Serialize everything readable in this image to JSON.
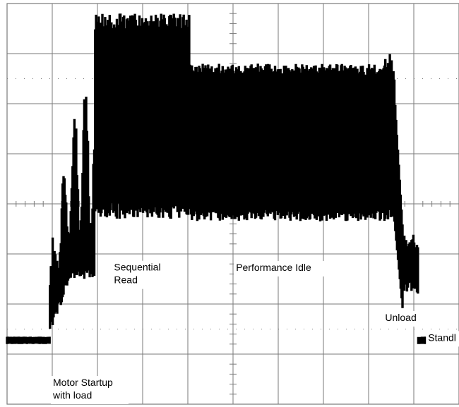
{
  "colors": {
    "background": "#ffffff",
    "grid": "#7a7a7a",
    "trace": "#000000",
    "label_box": "#ffffff"
  },
  "chart_data": {
    "type": "line",
    "title": "",
    "xlabel": "",
    "ylabel": "",
    "grid": true,
    "divisions": {
      "x": 10,
      "y": 8
    },
    "xlim": [
      0,
      10
    ],
    "ylim": [
      0,
      8
    ],
    "series": [
      {
        "segments": [
          {
            "x0": 0.0,
            "x1": 0.95,
            "style": "flat",
            "low": 1.2,
            "high": 1.35
          },
          {
            "x0": 0.95,
            "x1": 1.95,
            "style": "startup"
          },
          {
            "x0": 1.95,
            "x1": 4.05,
            "style": "band",
            "low": 3.7,
            "high": 7.8
          },
          {
            "x0": 4.05,
            "x1": 8.35,
            "style": "band",
            "low": 3.65,
            "high": 6.8
          },
          {
            "x0": 8.35,
            "x1": 9.1,
            "style": "unload"
          },
          {
            "x0": 9.1,
            "x1": 10.0,
            "style": "flat",
            "low": 1.2,
            "high": 1.35
          }
        ]
      }
    ],
    "annotations": [
      {
        "lines": [
          "Motor Startup",
          "with load"
        ],
        "x": 1.0,
        "y": 0.0
      },
      {
        "lines": [
          "Sequential",
          "Read"
        ],
        "x": 2.35,
        "y": 2.3
      },
      {
        "lines": [
          "Performance Idle"
        ],
        "x": 5.05,
        "y": 2.55
      },
      {
        "lines": [
          "Unload"
        ],
        "x": 8.35,
        "y": 1.55
      },
      {
        "lines": [
          "Standl"
        ],
        "x": 9.3,
        "y": 1.15
      }
    ]
  }
}
